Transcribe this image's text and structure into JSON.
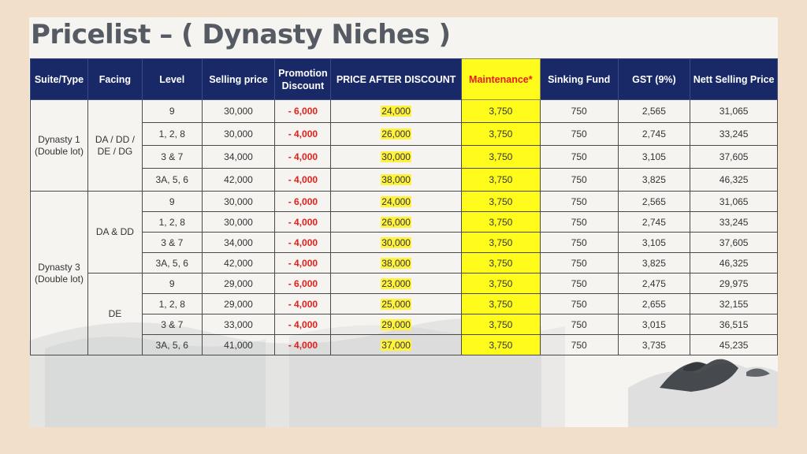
{
  "title": "Pricelist – ( Dynasty Niches )",
  "colors": {
    "header_bg": "#192968",
    "header_text": "#ffffff",
    "maintenance_bg": "#fffb1a",
    "maintenance_text": "#e3201b",
    "promotion_text": "#e3201b",
    "price_highlight": "#fff23d",
    "title_color": "#565b63"
  },
  "headers": {
    "suite": "Suite/Type",
    "facing": "Facing",
    "level": "Level",
    "selling": "Selling price",
    "promo": "Promotion Discount",
    "after": "PRICE AFTER DISCOUNT",
    "maintenance": "Maintenance*",
    "sinking": "Sinking Fund",
    "gst": "GST (9%)",
    "nett": "Nett Selling Price"
  },
  "groups": [
    {
      "suite": "Dynasty 1 (Double lot)",
      "facings": [
        {
          "facing": "DA / DD / DE / DG",
          "rows": [
            {
              "level": "9",
              "selling": "30,000",
              "promo": "- 6,000",
              "after": "24,000",
              "maintenance": "3,750",
              "sinking": "750",
              "gst": "2,565",
              "nett": "31,065"
            },
            {
              "level": "1, 2, 8",
              "selling": "30,000",
              "promo": "- 4,000",
              "after": "26,000",
              "maintenance": "3,750",
              "sinking": "750",
              "gst": "2,745",
              "nett": "33,245"
            },
            {
              "level": "3 & 7",
              "selling": "34,000",
              "promo": "- 4,000",
              "after": "30,000",
              "maintenance": "3,750",
              "sinking": "750",
              "gst": "3,105",
              "nett": "37,605"
            },
            {
              "level": "3A, 5, 6",
              "selling": "42,000",
              "promo": "- 4,000",
              "after": "38,000",
              "maintenance": "3,750",
              "sinking": "750",
              "gst": "3,825",
              "nett": "46,325"
            }
          ]
        }
      ]
    },
    {
      "suite": "Dynasty 3 (Double lot)",
      "facings": [
        {
          "facing": "DA & DD",
          "rows": [
            {
              "level": "9",
              "selling": "30,000",
              "promo": "- 6,000",
              "after": "24,000",
              "maintenance": "3,750",
              "sinking": "750",
              "gst": "2,565",
              "nett": "31,065"
            },
            {
              "level": "1, 2, 8",
              "selling": "30,000",
              "promo": "- 4,000",
              "after": "26,000",
              "maintenance": "3,750",
              "sinking": "750",
              "gst": "2,745",
              "nett": "33,245"
            },
            {
              "level": "3 & 7",
              "selling": "34,000",
              "promo": "- 4,000",
              "after": "30,000",
              "maintenance": "3,750",
              "sinking": "750",
              "gst": "3,105",
              "nett": "37,605"
            },
            {
              "level": "3A, 5, 6",
              "selling": "42,000",
              "promo": "- 4,000",
              "after": "38,000",
              "maintenance": "3,750",
              "sinking": "750",
              "gst": "3,825",
              "nett": "46,325"
            }
          ]
        },
        {
          "facing": "DE",
          "rows": [
            {
              "level": "9",
              "selling": "29,000",
              "promo": "- 6,000",
              "after": "23,000",
              "maintenance": "3,750",
              "sinking": "750",
              "gst": "2,475",
              "nett": "29,975"
            },
            {
              "level": "1, 2, 8",
              "selling": "29,000",
              "promo": "- 4,000",
              "after": "25,000",
              "maintenance": "3,750",
              "sinking": "750",
              "gst": "2,655",
              "nett": "32,155"
            },
            {
              "level": "3 & 7",
              "selling": "33,000",
              "promo": "- 4,000",
              "after": "29,000",
              "maintenance": "3,750",
              "sinking": "750",
              "gst": "3,015",
              "nett": "36,515"
            },
            {
              "level": "3A, 5, 6",
              "selling": "41,000",
              "promo": "- 4,000",
              "after": "37,000",
              "maintenance": "3,750",
              "sinking": "750",
              "gst": "3,735",
              "nett": "45,235"
            }
          ]
        }
      ]
    }
  ]
}
